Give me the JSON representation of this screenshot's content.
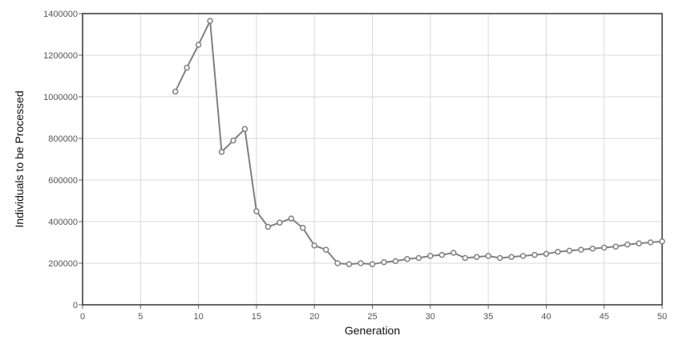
{
  "chart_data": {
    "type": "line",
    "xlabel": "Generation",
    "ylabel": "Individuals to be Processed",
    "xlim": [
      0,
      50
    ],
    "ylim": [
      0,
      1400000
    ],
    "grid": true,
    "x_ticks": [
      "0",
      "5",
      "10",
      "15",
      "20",
      "25",
      "30",
      "35",
      "40",
      "45",
      "50"
    ],
    "y_ticks": [
      "0",
      "200000",
      "400000",
      "600000",
      "800000",
      "1000000",
      "1200000",
      "1400000"
    ],
    "x_tick_values": [
      0,
      5,
      10,
      15,
      20,
      25,
      30,
      35,
      40,
      45,
      50
    ],
    "y_tick_values": [
      0,
      200000,
      400000,
      600000,
      800000,
      1000000,
      1200000,
      1400000
    ],
    "series": [
      {
        "color": "#808080",
        "x": [
          8,
          9,
          10,
          11,
          12,
          13,
          14,
          15,
          16,
          17,
          18,
          19,
          20,
          21,
          22,
          23,
          24,
          25,
          26,
          27,
          28,
          29,
          30,
          31,
          32,
          33,
          34,
          35,
          36,
          37,
          38,
          39,
          40,
          41,
          42,
          43,
          44,
          45,
          46,
          47,
          48,
          49,
          50
        ],
        "y": [
          1025000,
          1140000,
          1250000,
          1365000,
          735000,
          790000,
          845000,
          450000,
          375000,
          395000,
          415000,
          370000,
          285000,
          265000,
          200000,
          195000,
          200000,
          195000,
          205000,
          210000,
          220000,
          225000,
          235000,
          240000,
          250000,
          225000,
          230000,
          235000,
          225000,
          230000,
          235000,
          240000,
          245000,
          255000,
          260000,
          265000,
          270000,
          275000,
          280000,
          290000,
          295000,
          300000,
          305000
        ]
      }
    ]
  }
}
